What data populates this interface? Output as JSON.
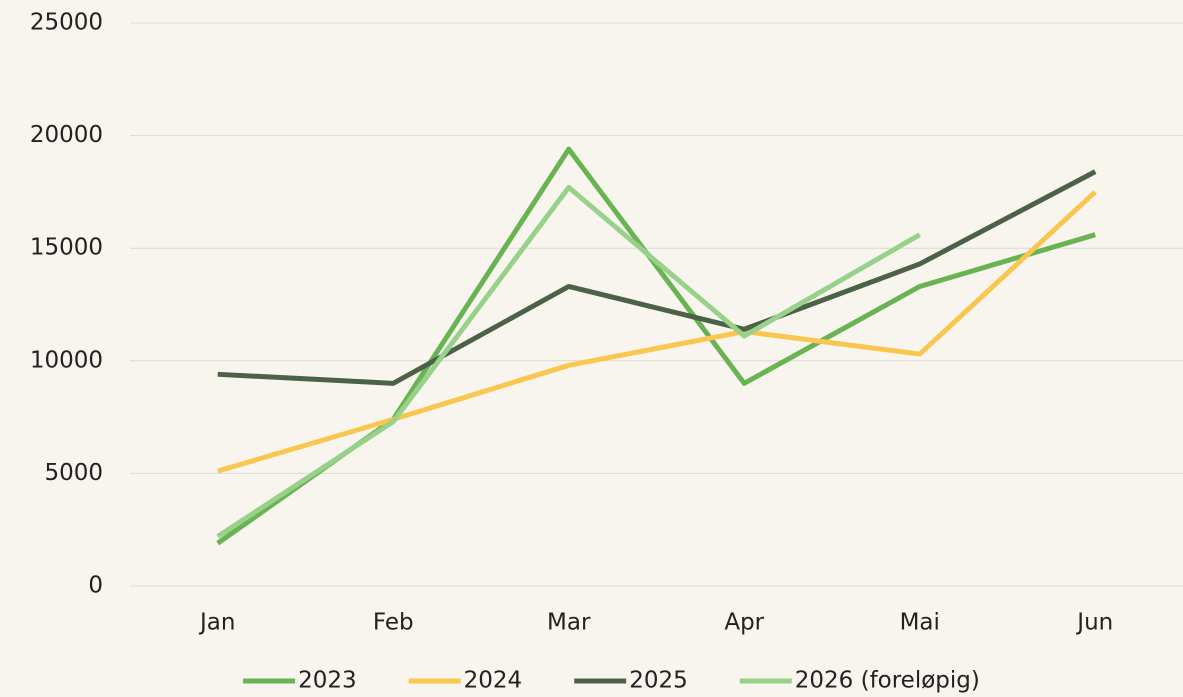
{
  "chart_data": {
    "type": "line",
    "categories": [
      "Jan",
      "Feb",
      "Mar",
      "Apr",
      "Mai",
      "Jun"
    ],
    "series": [
      {
        "name": "2023",
        "color": "#6ab352",
        "values": [
          1900,
          7400,
          19400,
          9000,
          13300,
          15600
        ]
      },
      {
        "name": "2024",
        "color": "#f9c74f",
        "values": [
          5100,
          7400,
          9800,
          11300,
          10300,
          17500
        ]
      },
      {
        "name": "2025",
        "color": "#4d6147",
        "values": [
          9400,
          9000,
          13300,
          11400,
          14300,
          18400
        ]
      },
      {
        "name": "2026 (foreløpig)",
        "color": "#98d18a",
        "values": [
          2200,
          7300,
          17700,
          11100,
          15600,
          null
        ]
      }
    ],
    "ylim": [
      0,
      25000
    ],
    "yticks": [
      0,
      5000,
      10000,
      15000,
      20000,
      25000
    ],
    "grid": true,
    "legend": "bottom"
  }
}
